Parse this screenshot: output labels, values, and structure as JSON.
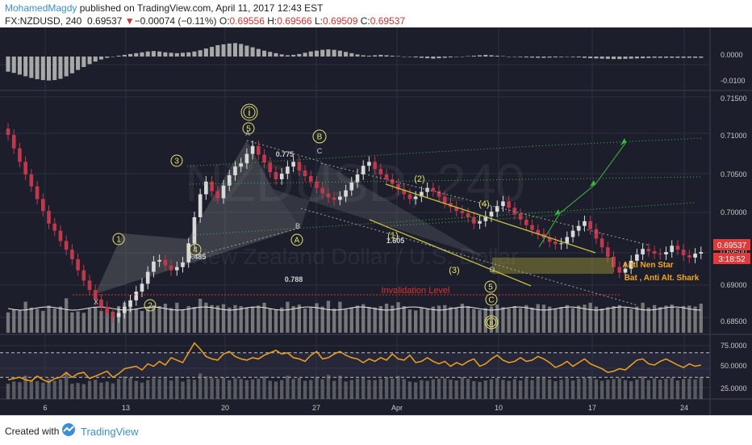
{
  "header": {
    "author": "MohamedMagdy",
    "published_text": " published on TradingView.com, April 11, 2017 12:43 EST",
    "symbol": "FX:NZDUSD, 240",
    "last": "0.69537",
    "change_arrow": "▼",
    "change": "−0.00074 (−0.11%)",
    "o_label": "O:",
    "o_val": "0.69556",
    "h_label": "H:",
    "h_val": "0.69566",
    "l_label": "L:",
    "l_val": "0.69509",
    "c_label": "C:",
    "c_val": "0.69537"
  },
  "watermark": {
    "big": "NZDUSD, 240",
    "small": "New Zealand Dollar / U.S. Dollar"
  },
  "colors": {
    "bg": "#1c1f2b",
    "grid": "#2c3040",
    "up": "#d9d9d9",
    "down": "#c0384b",
    "rsi_line": "#f0a020",
    "wave": "#e8e070",
    "green_dots": "#3fb83f",
    "pattern": "#a0a0a0",
    "channel": "#c8c040",
    "orange_text": "#f5a623",
    "invalid_red": "#e03030",
    "price_box": "#e03a3a",
    "author": "#3b8fd6"
  },
  "chart_data": [
    {
      "type": "bar",
      "name": "macd_histogram",
      "y_ticks": [
        "0.0000",
        "-0.0100"
      ],
      "x": [
        0,
        1,
        2,
        3,
        4,
        5,
        6,
        7,
        8,
        9,
        10,
        11,
        12,
        13,
        14,
        15,
        16,
        17,
        18,
        19,
        20,
        21,
        22,
        23,
        24,
        25,
        26,
        27,
        28,
        29,
        30,
        31,
        32,
        33,
        34,
        35,
        36,
        37,
        38,
        39,
        40,
        41,
        42,
        43,
        44,
        45,
        46,
        47,
        48,
        49,
        50,
        51,
        52,
        53,
        54,
        55,
        56,
        57,
        58,
        59,
        60,
        61,
        62,
        63,
        64,
        65,
        66,
        67,
        68,
        69,
        70,
        71,
        72,
        73,
        74,
        75,
        76,
        77,
        78,
        79,
        80,
        81,
        82,
        83,
        84,
        85,
        86,
        87,
        88,
        89,
        90,
        91,
        92,
        93,
        94,
        95,
        96,
        97,
        98,
        99,
        100,
        101,
        102,
        103,
        104,
        105,
        106,
        107,
        108,
        109,
        110,
        111,
        112,
        113,
        114,
        115,
        116,
        117,
        118,
        119
      ],
      "values": [
        -0.0072,
        -0.0078,
        -0.0086,
        -0.0094,
        -0.0102,
        -0.0108,
        -0.0112,
        -0.0114,
        -0.0112,
        -0.0106,
        -0.0094,
        -0.008,
        -0.0064,
        -0.005,
        -0.0036,
        -0.0024,
        -0.0014,
        -0.0006,
        0.0,
        0.0004,
        0.0008,
        0.0012,
        0.0016,
        0.002,
        0.0024,
        0.0026,
        0.0024,
        0.002,
        0.0018,
        0.0016,
        0.0018,
        0.002,
        0.0024,
        0.003,
        0.0038,
        0.0046,
        0.0054,
        0.0058,
        0.0062,
        0.0064,
        0.006,
        0.0052,
        0.0044,
        0.0036,
        0.0028,
        0.0022,
        0.0016,
        0.001,
        0.0006,
        0.0008,
        0.0012,
        0.0018,
        0.0024,
        0.0028,
        0.0032,
        0.0034,
        0.0032,
        0.0028,
        0.0022,
        0.0016,
        0.001,
        0.0006,
        0.0004,
        0.0006,
        0.0008,
        0.0006,
        0.0004,
        0.0002,
        0.0,
        -0.0002,
        -0.0004,
        -0.0006,
        -0.0008,
        -0.001,
        -0.0008,
        -0.0006,
        -0.0004,
        -0.0002,
        0.0,
        0.0002,
        0.0004,
        0.0006,
        0.0008,
        0.0006,
        0.0004,
        0.0002,
        0.0,
        -0.0002,
        -0.0003,
        -0.0004,
        -0.0005,
        -0.0006,
        -0.0006,
        -0.0005,
        -0.0004,
        -0.0003,
        -0.0002,
        -0.0003,
        -0.0004,
        -0.0006,
        -0.0008,
        -0.0009,
        -0.001,
        -0.0011,
        -0.0012,
        -0.0012,
        -0.0011,
        -0.001,
        -0.0009,
        -0.0008,
        -0.0007,
        -0.0006,
        -0.0006,
        -0.0006,
        -0.0006,
        -0.0006,
        -0.0006,
        -0.0006,
        -0.0006,
        -0.0006
      ]
    },
    {
      "type": "candlestick",
      "name": "price",
      "y_ticks": [
        "0.71500",
        "0.71000",
        "0.70500",
        "0.70000",
        "0.69500",
        "0.69000",
        "0.68500"
      ],
      "x_ticks": [
        "6",
        "13",
        "20",
        "27",
        "Apr",
        "10",
        "17",
        "24"
      ],
      "last_price": "0.69537",
      "countdown": "3:18:52",
      "close": [
        0.7102,
        0.7085,
        0.7068,
        0.7052,
        0.7037,
        0.7021,
        0.7006,
        0.699,
        0.6981,
        0.6968,
        0.6957,
        0.6945,
        0.6931,
        0.6918,
        0.6906,
        0.6894,
        0.6885,
        0.6877,
        0.6872,
        0.6877,
        0.6885,
        0.6893,
        0.6904,
        0.6914,
        0.6929,
        0.6942,
        0.6944,
        0.6937,
        0.6931,
        0.6935,
        0.6941,
        0.6965,
        0.6998,
        0.7027,
        0.7043,
        0.7031,
        0.7022,
        0.7038,
        0.7051,
        0.7062,
        0.7066,
        0.7078,
        0.7088,
        0.7077,
        0.7067,
        0.7055,
        0.7046,
        0.7053,
        0.7062,
        0.7068,
        0.7057,
        0.705,
        0.7043,
        0.7035,
        0.7028,
        0.7023,
        0.702,
        0.7024,
        0.7032,
        0.7042,
        0.7052,
        0.7063,
        0.7068,
        0.7059,
        0.7052,
        0.7046,
        0.704,
        0.7033,
        0.7027,
        0.7021,
        0.7024,
        0.703,
        0.7035,
        0.7031,
        0.7024,
        0.7016,
        0.7011,
        0.7006,
        0.7003,
        0.6998,
        0.699,
        0.6993,
        0.6999,
        0.7005,
        0.7012,
        0.7018,
        0.701,
        0.7002,
        0.6995,
        0.6988,
        0.6982,
        0.6977,
        0.6972,
        0.6967,
        0.6964,
        0.6965,
        0.6973,
        0.6981,
        0.6987,
        0.6993,
        0.6983,
        0.6971,
        0.696,
        0.6948,
        0.6935,
        0.6928,
        0.6933,
        0.6943,
        0.6951,
        0.6958,
        0.6955,
        0.6952,
        0.6951,
        0.6954,
        0.6962,
        0.6957,
        0.695,
        0.6947,
        0.6952,
        0.6954
      ]
    },
    {
      "type": "bar",
      "name": "volume",
      "values": [
        42,
        48,
        46,
        64,
        52,
        49,
        45,
        56,
        50,
        54,
        71,
        42,
        44,
        41,
        50,
        53,
        45,
        48,
        43,
        55,
        62,
        58,
        50,
        45,
        52,
        57,
        55,
        60,
        51,
        62,
        48,
        55,
        53,
        70,
        62,
        57,
        56,
        59,
        52,
        57,
        55,
        52,
        54,
        56,
        62,
        50,
        48,
        52,
        64,
        55,
        58,
        50,
        52,
        61,
        54,
        66,
        50,
        64,
        48,
        52,
        56,
        59,
        53,
        52,
        55,
        60,
        56,
        63,
        55,
        48,
        46,
        52,
        50,
        54,
        56,
        57,
        53,
        51,
        60,
        55,
        49,
        47,
        51,
        54,
        58,
        53,
        50,
        55,
        51,
        57,
        52,
        59,
        58,
        54,
        49,
        53,
        57,
        51,
        56,
        58,
        62,
        54,
        50,
        53,
        55,
        57,
        52,
        49,
        54,
        62,
        52,
        57,
        53,
        56,
        58,
        51,
        55,
        56,
        54,
        60
      ]
    },
    {
      "type": "line",
      "name": "rsi",
      "y_ticks": [
        "75.0000",
        "50.0000",
        "25.0000"
      ],
      "ylim": [
        0,
        100
      ],
      "values": [
        26,
        28,
        30,
        26,
        24,
        32,
        26,
        22,
        28,
        30,
        38,
        30,
        36,
        38,
        28,
        32,
        36,
        40,
        30,
        36,
        44,
        46,
        48,
        42,
        52,
        48,
        56,
        50,
        62,
        58,
        54,
        70,
        86,
        76,
        64,
        60,
        58,
        68,
        72,
        64,
        60,
        58,
        62,
        60,
        66,
        70,
        74,
        68,
        70,
        62,
        60,
        56,
        66,
        72,
        60,
        62,
        68,
        72,
        66,
        62,
        60,
        54,
        60,
        56,
        62,
        58,
        68,
        60,
        58,
        66,
        54,
        56,
        62,
        56,
        52,
        56,
        48,
        54,
        50,
        56,
        60,
        48,
        52,
        60,
        66,
        58,
        54,
        56,
        62,
        56,
        58,
        64,
        60,
        54,
        46,
        50,
        56,
        48,
        54,
        60,
        52,
        48,
        44,
        38,
        40,
        44,
        42,
        50,
        58,
        60,
        52,
        50,
        56,
        60,
        55,
        50,
        46,
        52,
        48,
        50
      ]
    },
    {
      "type": "annotation",
      "name": "wave_labels",
      "labels": {
        "wave_i": "i",
        "wave_ii": "ii",
        "w1": "1",
        "w2": "2",
        "w3": "3",
        "w4": "4",
        "w5": "5",
        "wA": "A",
        "wB": "B",
        "wC": "C",
        "w5b": "5",
        "p2": "(2)",
        "p4": "(4)",
        "p1": "(1)",
        "p3": "(3)",
        "p5": "(5)",
        "x": "X",
        "b": "B",
        "c": "C",
        "d": "D",
        "a_top": "A",
        "f775": "0.775",
        "f485": "0.485",
        "f788": "0.788",
        "f1605": "1.605",
        "invalid": "Invalidation Level",
        "anti1": "Anti Nen Star",
        "anti2": "Bat , Anti Alt. Shark"
      }
    }
  ],
  "footer": {
    "created_with": "Created with",
    "brand": "TradingView"
  }
}
